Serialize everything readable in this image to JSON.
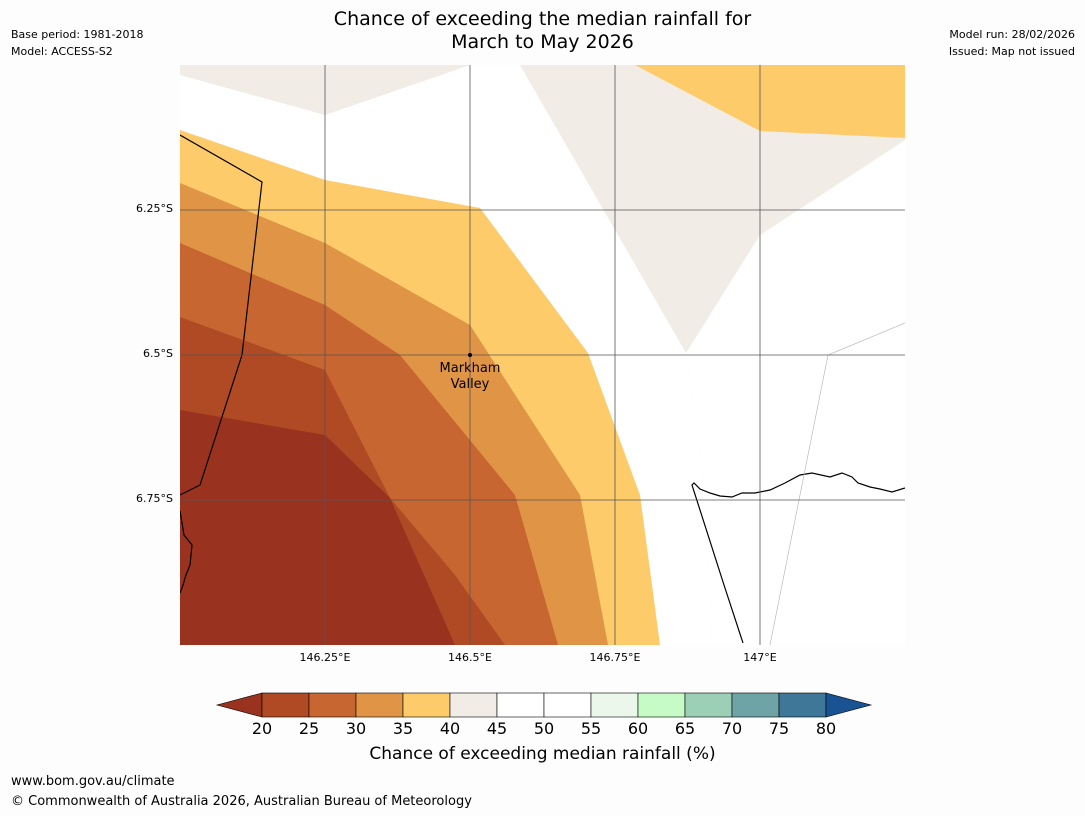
{
  "title": {
    "line1": "Chance of exceeding the median rainfall for",
    "line2": "March to May 2026"
  },
  "meta": {
    "base_period": "Base period: 1981-2018",
    "model": "Model: ACCESS-S2",
    "model_run": "Model run: 28/02/2026",
    "issued": "Issued: Map not issued"
  },
  "map": {
    "place_name_line1": "Markham",
    "place_name_line2": "Valley",
    "lat_labels": [
      "6.25°S",
      "6.5°S",
      "6.75°S"
    ],
    "lon_labels": [
      "146.25°E",
      "146.5°E",
      "146.75°E",
      "147°E"
    ],
    "colors": {
      "lt25": "#993320",
      "c25_30": "#b04a24",
      "c30_35": "#c86632",
      "c35_40": "#e09446",
      "c40_45": "#fdcb6a",
      "c45_50": "#f1ece5",
      "white": "#ffffff",
      "grid": "#555555",
      "coast": "#000000"
    }
  },
  "colorbar": {
    "ticks": [
      "20",
      "25",
      "30",
      "35",
      "40",
      "45",
      "50",
      "55",
      "60",
      "65",
      "70",
      "75",
      "80"
    ],
    "colors": [
      "#993320",
      "#b04a24",
      "#c86632",
      "#e09446",
      "#fdcb6a",
      "#f1ece5",
      "#ffffff",
      "#ffffff",
      "#eaf7ea",
      "#c6fbc6",
      "#9ccfb6",
      "#6ea4a6",
      "#3e7798",
      "#1a5394"
    ],
    "label": "Chance of exceeding median rainfall (%)"
  },
  "footer": {
    "url": "www.bom.gov.au/climate",
    "copyright": "© Commonwealth of Australia 2026, Australian Bureau of Meteorology"
  }
}
